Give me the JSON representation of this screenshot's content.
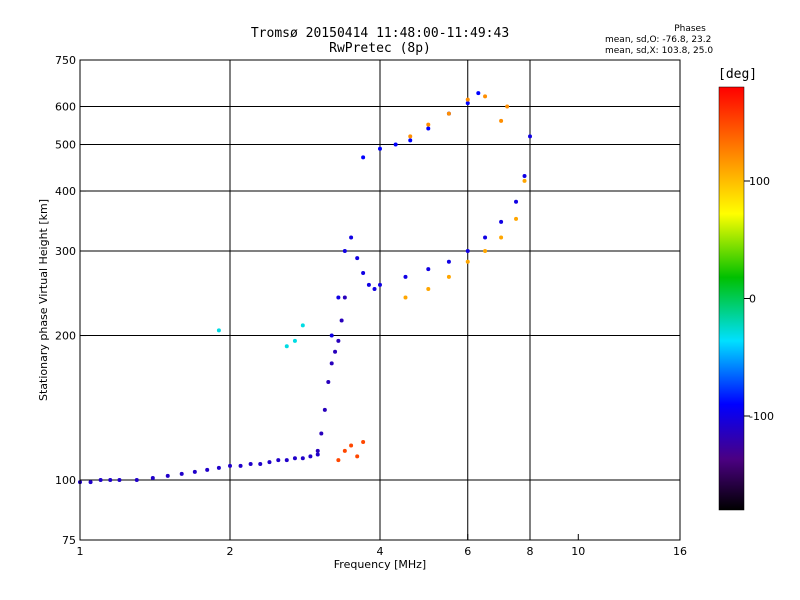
{
  "chart_data": {
    "type": "scatter",
    "title": "Tromsø 20150414 11:48:00-11:49:43",
    "subtitle": "RwPretec (8p)",
    "xlabel": "Frequency [MHz]",
    "ylabel": "Stationary phase Virtual Height [km]",
    "x_scale": "log",
    "y_scale": "log",
    "xlim": [
      1,
      16
    ],
    "ylim": [
      75,
      750
    ],
    "x_ticks": [
      "1",
      "2",
      "4",
      "6",
      "8",
      "10",
      "16"
    ],
    "x_tick_values": [
      1,
      2,
      4,
      6,
      8,
      10,
      16
    ],
    "y_ticks": [
      "75",
      "100",
      "200",
      "300",
      "400",
      "500",
      "600",
      "750"
    ],
    "y_tick_values": [
      75,
      100,
      200,
      300,
      400,
      500,
      600,
      750
    ],
    "grid": true,
    "colorbar": {
      "label": "[deg]",
      "ticks": [
        "100",
        "0",
        "-100"
      ],
      "tick_values": [
        100,
        0,
        -100
      ],
      "range": [
        -180,
        180
      ]
    },
    "phase_stats": {
      "heading": "Phases",
      "line_o": "mean, sd,O: -76.8, 23.2",
      "line_x": "mean, sd,X: 103.8, 25.0"
    },
    "series": [
      {
        "x": [
          1.0,
          1.05,
          1.1,
          1.15,
          1.2,
          1.3,
          1.4,
          1.5,
          1.6,
          1.7,
          1.8,
          1.9,
          2.0,
          2.1,
          2.2,
          2.3,
          2.4,
          2.5,
          2.6,
          2.7,
          2.8,
          2.9,
          3.0
        ],
        "y": [
          99,
          99,
          100,
          100,
          100,
          100,
          101,
          102,
          103,
          104,
          105,
          106,
          107,
          107,
          108,
          108,
          109,
          110,
          110,
          111,
          111,
          112,
          113
        ],
        "phase": -110
      },
      {
        "x": [
          3.0,
          3.05,
          3.1,
          3.15,
          3.2,
          3.25,
          3.3,
          3.35,
          3.4
        ],
        "y": [
          115,
          125,
          140,
          160,
          175,
          185,
          195,
          215,
          240
        ],
        "phase": -115
      },
      {
        "x": [
          3.2,
          3.3,
          3.4,
          3.5,
          3.6,
          3.7,
          3.8,
          3.9,
          4.0,
          4.5,
          5.0,
          5.5,
          6.0,
          6.5,
          7.0,
          7.5,
          7.8,
          8.0
        ],
        "y": [
          200,
          240,
          300,
          320,
          290,
          270,
          255,
          250,
          255,
          265,
          275,
          285,
          300,
          320,
          345,
          380,
          430,
          520
        ],
        "phase": -100
      },
      {
        "x": [
          4.5,
          5.0,
          5.5,
          6.0,
          6.5,
          7.0,
          7.5,
          7.8
        ],
        "y": [
          240,
          250,
          265,
          285,
          300,
          320,
          350,
          420
        ],
        "phase": 110
      },
      {
        "x": [
          3.7,
          4.0,
          4.3,
          4.6,
          5.0,
          5.5,
          6.0,
          6.3
        ],
        "y": [
          470,
          490,
          500,
          510,
          540,
          580,
          610,
          640
        ],
        "phase": -90
      },
      {
        "x": [
          4.6,
          5.0,
          5.5,
          6.0,
          6.5,
          7.0,
          7.2
        ],
        "y": [
          520,
          550,
          580,
          620,
          630,
          560,
          600
        ],
        "phase": 120
      },
      {
        "x": [
          3.3,
          3.4,
          3.5,
          3.6,
          3.7
        ],
        "y": [
          110,
          115,
          118,
          112,
          120
        ],
        "phase": 150
      },
      {
        "x": [
          2.6,
          2.7,
          2.8,
          1.9
        ],
        "y": [
          190,
          195,
          210,
          205
        ],
        "phase": -30
      }
    ]
  }
}
